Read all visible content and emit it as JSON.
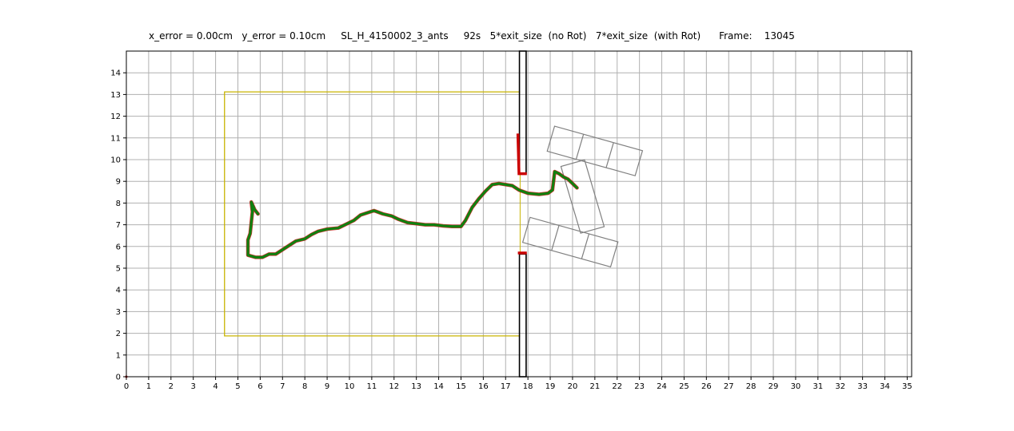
{
  "title": "x_error = 0.00cm   y_error = 0.10cm     SL_H_4150002_3_ants     92s   5*exit_size  (no Rot)   7*exit_size  (with Rot)      Frame:    13045",
  "chart_data": {
    "type": "line",
    "xlim": [
      0,
      35.2
    ],
    "ylim": [
      0,
      15.0
    ],
    "x_ticks": [
      "0",
      "1",
      "2",
      "3",
      "4",
      "5",
      "6",
      "7",
      "8",
      "9",
      "10",
      "11",
      "12",
      "13",
      "14",
      "15",
      "16",
      "17",
      "18",
      "19",
      "20",
      "21",
      "22",
      "23",
      "24",
      "25",
      "26",
      "27",
      "28",
      "29",
      "30",
      "31",
      "32",
      "33",
      "34",
      "35"
    ],
    "y_ticks": [
      "0",
      "1",
      "2",
      "3",
      "4",
      "5",
      "6",
      "7",
      "8",
      "9",
      "10",
      "11",
      "12",
      "13",
      "14"
    ],
    "grid": true,
    "colors": {
      "trajectory": "#108010",
      "trajectory_shadow": "#cc0000",
      "wall_marks": "#cc0000",
      "boundary": "#c8b400",
      "wall": "#000000",
      "load": "#808080",
      "grid": "#b0b0b0"
    },
    "series": [
      {
        "values_xy": [
          [
            5.9,
            7.5
          ],
          [
            5.75,
            7.7
          ],
          [
            5.6,
            8.05
          ],
          [
            5.65,
            7.6
          ],
          [
            5.6,
            7.1
          ],
          [
            5.55,
            6.6
          ],
          [
            5.45,
            6.3
          ],
          [
            5.45,
            5.6
          ],
          [
            5.8,
            5.5
          ],
          [
            6.1,
            5.5
          ],
          [
            6.4,
            5.65
          ],
          [
            6.7,
            5.65
          ],
          [
            7.0,
            5.85
          ],
          [
            7.3,
            6.05
          ],
          [
            7.6,
            6.25
          ],
          [
            8.0,
            6.35
          ],
          [
            8.3,
            6.55
          ],
          [
            8.6,
            6.7
          ],
          [
            9.0,
            6.8
          ],
          [
            9.5,
            6.85
          ],
          [
            9.9,
            7.05
          ],
          [
            10.2,
            7.2
          ],
          [
            10.5,
            7.45
          ],
          [
            10.8,
            7.55
          ],
          [
            11.1,
            7.65
          ],
          [
            11.5,
            7.5
          ],
          [
            11.9,
            7.4
          ],
          [
            12.2,
            7.25
          ],
          [
            12.6,
            7.1
          ],
          [
            13.0,
            7.05
          ],
          [
            13.4,
            7.0
          ],
          [
            13.8,
            7.0
          ],
          [
            14.2,
            6.95
          ],
          [
            14.6,
            6.92
          ],
          [
            15.0,
            6.92
          ],
          [
            15.2,
            7.2
          ],
          [
            15.5,
            7.8
          ],
          [
            15.8,
            8.2
          ],
          [
            16.1,
            8.55
          ],
          [
            16.4,
            8.85
          ],
          [
            16.7,
            8.9
          ],
          [
            17.0,
            8.85
          ],
          [
            17.3,
            8.8
          ],
          [
            17.6,
            8.6
          ],
          [
            18.0,
            8.45
          ],
          [
            18.5,
            8.4
          ],
          [
            18.9,
            8.45
          ],
          [
            19.1,
            8.6
          ],
          [
            19.2,
            9.45
          ],
          [
            19.4,
            9.35
          ],
          [
            19.6,
            9.2
          ],
          [
            19.8,
            9.1
          ],
          [
            20.0,
            8.9
          ],
          [
            20.2,
            8.7
          ]
        ]
      }
    ]
  }
}
